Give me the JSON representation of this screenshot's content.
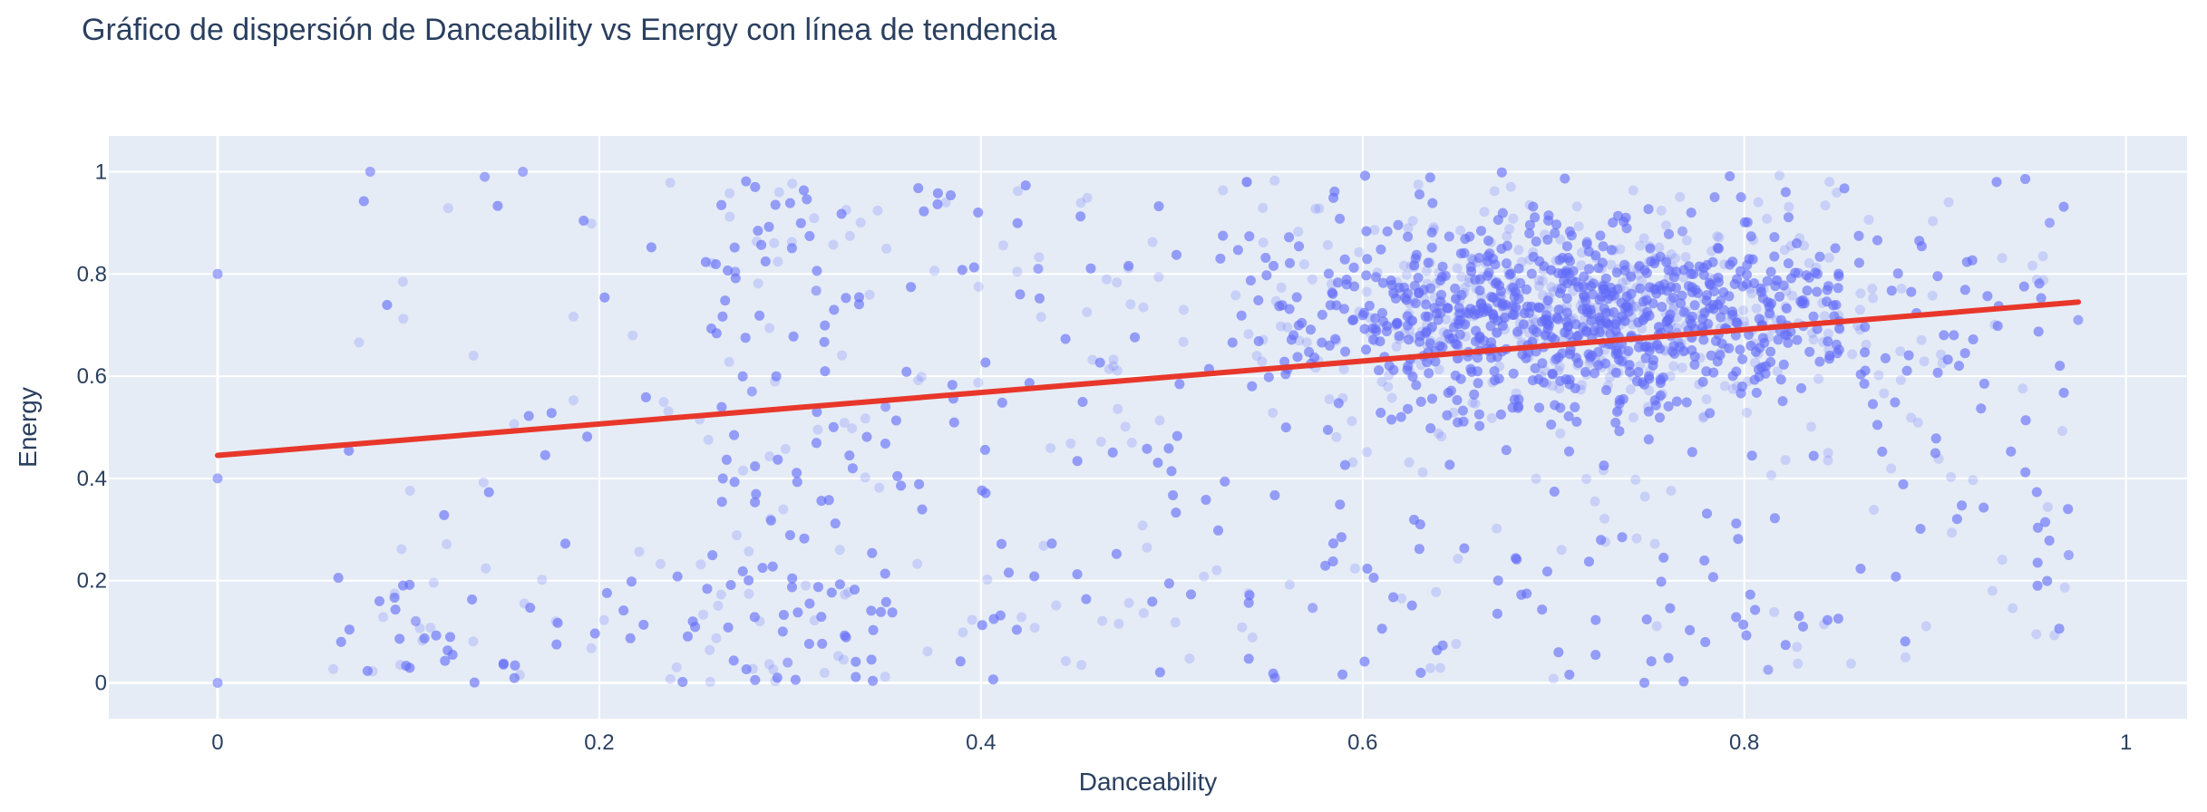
{
  "chart_data": {
    "type": "scatter",
    "title": "Gráfico de dispersión de Danceability vs Energy con línea de tendencia",
    "xlabel": "Danceability",
    "ylabel": "Energy",
    "xlim": [
      -0.057,
      1.032
    ],
    "ylim": [
      -0.07,
      1.07
    ],
    "x_ticks": [
      0,
      0.2,
      0.4,
      0.6,
      0.8,
      1
    ],
    "x_tick_labels": [
      "0",
      "0.2",
      "0.4",
      "0.6",
      "0.8",
      "1"
    ],
    "y_ticks": [
      0,
      0.2,
      0.4,
      0.6,
      0.8,
      1
    ],
    "y_tick_labels": [
      "0",
      "0.2",
      "0.4",
      "0.6",
      "0.8",
      "1"
    ],
    "grid": true,
    "colors": {
      "points": "#636efa",
      "trendline": "#e8372a",
      "plot_background": "#e5ecf6",
      "gridlines": "#ffffff",
      "text": "#2a3f5f"
    },
    "series": [
      {
        "kind": "scatter",
        "marker_opacity": 0.22,
        "x_range": [
          0,
          0.975
        ],
        "y_range": [
          0,
          1
        ],
        "dense_region": {
          "x": 0.72,
          "y": 0.72
        },
        "sample_points": [
          {
            "x": 0,
            "y": 0
          },
          {
            "x": 0,
            "y": 0.8
          },
          {
            "x": 0,
            "y": 0.4
          },
          {
            "x": 0.08,
            "y": 1.0
          },
          {
            "x": 0.14,
            "y": 0.99
          },
          {
            "x": 0.16,
            "y": 1.0
          },
          {
            "x": 0.28,
            "y": 0.57
          },
          {
            "x": 0.35,
            "y": 0.54
          },
          {
            "x": 0.43,
            "y": 0.81
          },
          {
            "x": 0.96,
            "y": 0.9
          },
          {
            "x": 0.975,
            "y": 0.71
          },
          {
            "x": 0.97,
            "y": 0.25
          }
        ]
      },
      {
        "kind": "trendline",
        "x": [
          0,
          0.975
        ],
        "y": [
          0.445,
          0.745
        ]
      }
    ]
  }
}
